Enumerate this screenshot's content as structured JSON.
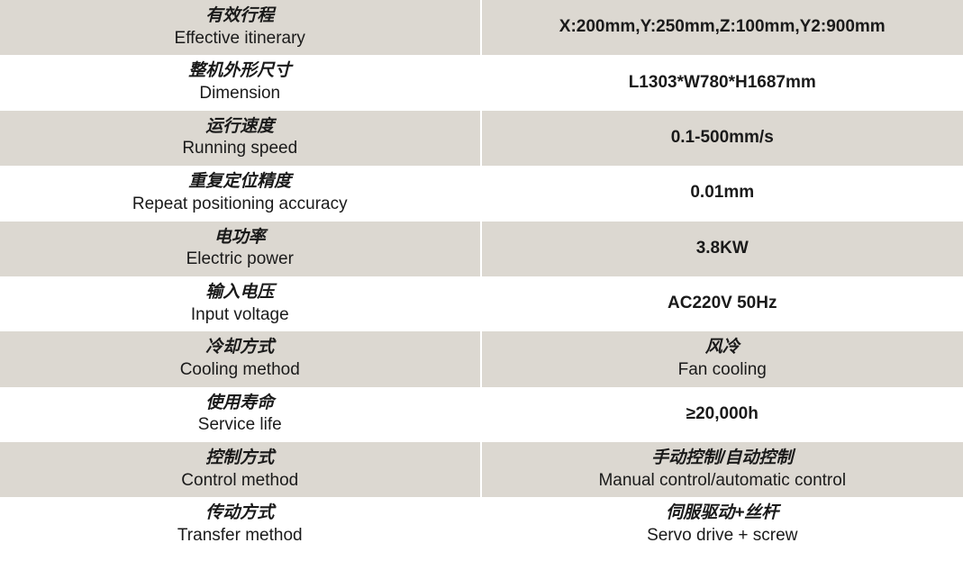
{
  "table": {
    "background_shaded": "#dcd8d1",
    "background_white": "#ffffff",
    "text_color": "#1a1a1a",
    "label_fontsize": 19,
    "value_fontsize": 19,
    "rows": [
      {
        "label_cn": "有效行程",
        "label_en": "Effective itinerary",
        "value": "X:200mm,Y:250mm,Z:100mm,Y2:900mm",
        "shaded": true
      },
      {
        "label_cn": "整机外形尺寸",
        "label_en": "Dimension",
        "value": "L1303*W780*H1687mm",
        "shaded": false
      },
      {
        "label_cn": "运行速度",
        "label_en": "Running speed",
        "value": "0.1-500mm/s",
        "shaded": true
      },
      {
        "label_cn": "重复定位精度",
        "label_en": "Repeat positioning accuracy",
        "value": "0.01mm",
        "shaded": false
      },
      {
        "label_cn": "电功率",
        "label_en": "Electric power",
        "value": "3.8KW",
        "shaded": true
      },
      {
        "label_cn": "输入电压",
        "label_en": "Input voltage",
        "value": "AC220V 50Hz",
        "shaded": false
      },
      {
        "label_cn": "冷却方式",
        "label_en": "Cooling method",
        "value_cn": "风冷",
        "value_en": "Fan cooling",
        "shaded": true
      },
      {
        "label_cn": "使用寿命",
        "label_en": "Service life",
        "value": "≥20,000h",
        "shaded": false
      },
      {
        "label_cn": "控制方式",
        "label_en": "Control method",
        "value_cn": "手动控制/自动控制",
        "value_en": "Manual control/automatic control",
        "shaded": true
      },
      {
        "label_cn": "传动方式",
        "label_en": "Transfer method",
        "value_cn": "伺服驱动+丝杆",
        "value_en": "Servo drive + screw",
        "shaded": false
      }
    ]
  }
}
